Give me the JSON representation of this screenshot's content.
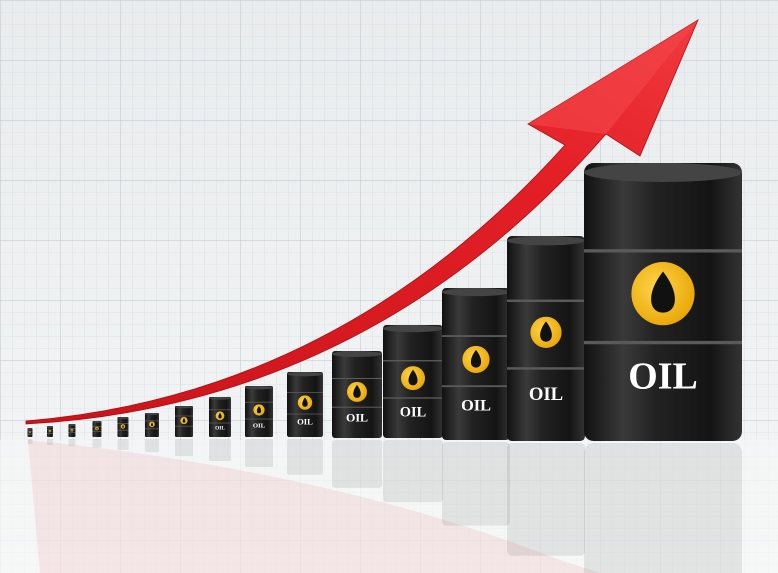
{
  "barrels": [
    {
      "label": "OIL"
    },
    {
      "label": "OIL"
    },
    {
      "label": "OIL"
    },
    {
      "label": "OIL"
    },
    {
      "label": "OIL"
    },
    {
      "label": "OIL"
    },
    {
      "label": "OIL"
    },
    {
      "label": "OIL"
    }
  ]
}
